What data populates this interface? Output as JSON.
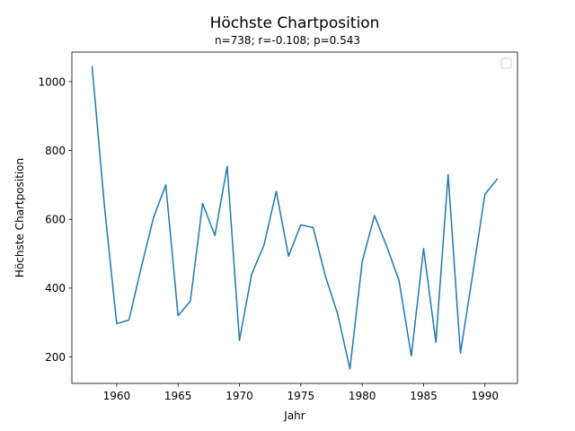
{
  "chart_data": {
    "type": "line",
    "title": "Höchste Chartposition",
    "subtitle": "n=738; r=-0.108; p=0.543",
    "xlabel": "Jahr",
    "ylabel": "Höchste Chartposition",
    "xlim": [
      1956.35,
      1992.65
    ],
    "ylim": [
      123,
      1086
    ],
    "xticks": [
      1960,
      1965,
      1970,
      1975,
      1980,
      1985,
      1990
    ],
    "yticks": [
      200,
      400,
      600,
      800,
      1000
    ],
    "grid": false,
    "legend": "top-right",
    "series": [
      {
        "color": "#1f77b4",
        "x": [
          1958,
          1959,
          1960,
          1961,
          1962,
          1963,
          1964,
          1965,
          1966,
          1967,
          1968,
          1969,
          1970,
          1971,
          1972,
          1973,
          1974,
          1975,
          1976,
          1977,
          1978,
          1979,
          1980,
          1981,
          1982,
          1983,
          1984,
          1985,
          1986,
          1987,
          1988,
          1989,
          1990,
          1991
        ],
        "y": [
          1043,
          640,
          297,
          307,
          460,
          605,
          700,
          320,
          362,
          646,
          553,
          754,
          248,
          441,
          525,
          681,
          493,
          584,
          576,
          435,
          325,
          165,
          477,
          611,
          521,
          422,
          203,
          515,
          243,
          730,
          211,
          440,
          673,
          717
        ]
      }
    ]
  }
}
